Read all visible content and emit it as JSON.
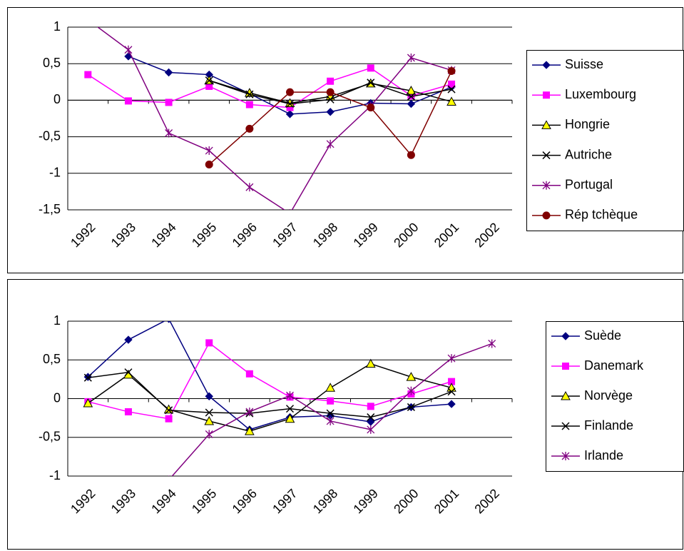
{
  "chart_data": [
    {
      "type": "line",
      "categories": [
        "1992",
        "1993",
        "1994",
        "1995",
        "1996",
        "1997",
        "1998",
        "1999",
        "2000",
        "2001",
        "2002"
      ],
      "ylim": [
        -1.5,
        1
      ],
      "yticks": [
        {
          "value": -1.5,
          "label": "-1,5"
        },
        -1,
        {
          "value": -0.5,
          "label": "-0,5"
        },
        0,
        {
          "value": 0.5,
          "label": "0,5"
        },
        1
      ],
      "grid": true,
      "legend": "right",
      "series": [
        {
          "name": "Suisse",
          "color": "#000080",
          "marker": "diamond",
          "values": [
            null,
            0.6,
            0.38,
            0.35,
            0.09,
            -0.19,
            -0.16,
            -0.04,
            -0.05,
            0.18,
            null
          ]
        },
        {
          "name": "Luxembourg",
          "color": "#ff00ff",
          "marker": "square",
          "values": [
            0.35,
            -0.01,
            -0.03,
            0.19,
            -0.06,
            -0.1,
            0.26,
            0.44,
            0.06,
            0.22,
            null
          ]
        },
        {
          "name": "Hongrie",
          "color": "#000000",
          "marker": "triangle",
          "values": [
            null,
            null,
            null,
            0.27,
            0.1,
            -0.04,
            0.05,
            0.23,
            0.13,
            -0.02,
            null
          ]
        },
        {
          "name": "Autriche",
          "color": "#000000",
          "marker": "x",
          "values": [
            null,
            null,
            null,
            0.27,
            0.08,
            -0.05,
            0.01,
            0.24,
            0.05,
            0.15,
            null
          ]
        },
        {
          "name": "Portugal",
          "color": "#800080",
          "marker": "star",
          "values": [
            1.1,
            0.69,
            -0.45,
            -0.69,
            -1.19,
            -1.55,
            -0.6,
            -0.08,
            0.58,
            0.41,
            null
          ]
        },
        {
          "name": "Rép tchèque",
          "color": "#800000",
          "marker": "circle",
          "values": [
            null,
            null,
            null,
            -0.88,
            -0.39,
            0.11,
            0.11,
            -0.1,
            -0.75,
            0.4,
            null
          ]
        }
      ]
    },
    {
      "type": "line",
      "categories": [
        "1992",
        "1993",
        "1994",
        "1995",
        "1996",
        "1997",
        "1998",
        "1999",
        "2000",
        "2001",
        "2002"
      ],
      "ylim": [
        -1,
        1
      ],
      "yticks": [
        -1,
        {
          "value": -0.5,
          "label": "-0,5"
        },
        0,
        {
          "value": 0.5,
          "label": "0,5"
        },
        1
      ],
      "grid": true,
      "legend": "right",
      "series": [
        {
          "name": "Suède",
          "color": "#000080",
          "marker": "diamond",
          "values": [
            0.28,
            0.76,
            1.03,
            0.03,
            -0.4,
            -0.24,
            -0.22,
            -0.3,
            -0.11,
            -0.07,
            null
          ]
        },
        {
          "name": "Danemark",
          "color": "#ff00ff",
          "marker": "square",
          "values": [
            -0.04,
            -0.17,
            -0.26,
            0.72,
            0.32,
            0.02,
            -0.03,
            -0.1,
            0.06,
            0.22,
            null
          ]
        },
        {
          "name": "Norvège",
          "color": "#000000",
          "marker": "triangle",
          "values": [
            -0.06,
            0.31,
            -0.14,
            -0.29,
            -0.42,
            -0.26,
            0.14,
            0.45,
            0.28,
            0.14,
            null
          ]
        },
        {
          "name": "Finlande",
          "color": "#000000",
          "marker": "x",
          "values": [
            0.27,
            0.34,
            -0.15,
            -0.18,
            -0.19,
            -0.13,
            -0.19,
            -0.24,
            -0.11,
            0.09,
            null
          ]
        },
        {
          "name": "Irlande",
          "color": "#800080",
          "marker": "star",
          "values": [
            null,
            null,
            -1.05,
            -0.46,
            -0.17,
            0.04,
            -0.29,
            -0.4,
            0.1,
            0.52,
            0.71
          ]
        }
      ]
    }
  ]
}
